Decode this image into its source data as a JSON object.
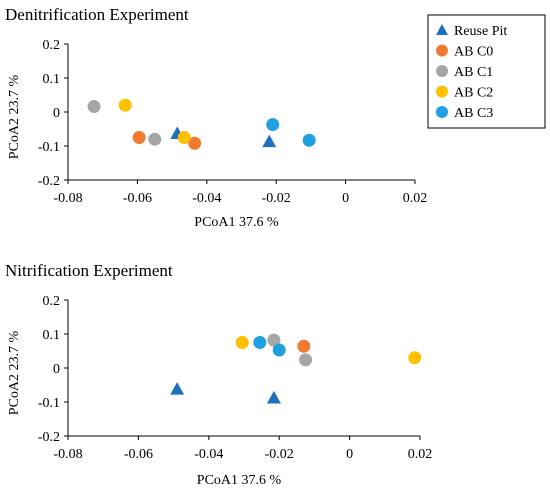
{
  "chart_data": [
    {
      "type": "scatter",
      "title": "Denitrification  Experiment",
      "xlabel": "PCoA1 37.6 %",
      "ylabel": "PCoA2 23.7 %",
      "xlim": [
        -0.08,
        0.02
      ],
      "ylim": [
        -0.2,
        0.2
      ],
      "x_ticks": [
        "-0.08",
        "-0.06",
        "-0.04",
        "-0.02",
        "0",
        "0.02"
      ],
      "y_ticks": [
        "0.2",
        "0.1",
        "0",
        "-0.1",
        "-0.2"
      ],
      "grid": false,
      "legend_position": "top-right",
      "legend": [
        {
          "name": "Reuse Pit",
          "shape": "triangle",
          "color": "#1f6fbf"
        },
        {
          "name": "AB C0",
          "shape": "circle",
          "color": "#f07a30"
        },
        {
          "name": "AB C1",
          "shape": "circle",
          "color": "#a6a6a6"
        },
        {
          "name": "AB C2",
          "shape": "circle",
          "color": "#ffc000"
        },
        {
          "name": "AB C3",
          "shape": "circle",
          "color": "#20a0e0"
        }
      ],
      "series": [
        {
          "name": "Reuse Pit",
          "x": [
            -0.0485,
            -0.022
          ],
          "y": [
            -0.063,
            -0.087
          ]
        },
        {
          "name": "AB C0",
          "x": [
            -0.0595,
            -0.0435
          ],
          "y": [
            -0.075,
            -0.092
          ]
        },
        {
          "name": "AB C1",
          "x": [
            -0.0725,
            -0.055
          ],
          "y": [
            0.016,
            -0.08
          ]
        },
        {
          "name": "AB C2",
          "x": [
            -0.0635,
            -0.0465
          ],
          "y": [
            0.02,
            -0.075
          ]
        },
        {
          "name": "AB C3",
          "x": [
            -0.021,
            -0.0105
          ],
          "y": [
            -0.037,
            -0.083
          ]
        }
      ]
    },
    {
      "type": "scatter",
      "title": "Nitrification  Experiment",
      "xlabel": "PCoA1 37.6 %",
      "ylabel": "PCoA2 23.7 %",
      "xlim": [
        -0.08,
        0.02
      ],
      "ylim": [
        -0.2,
        0.2
      ],
      "x_ticks": [
        "-0.08",
        "-0.06",
        "-0.04",
        "-0.02",
        "0",
        "0.02"
      ],
      "y_ticks": [
        "0.2",
        "0.1",
        "0",
        "-0.1",
        "-0.2"
      ],
      "grid": false,
      "legend_position": "none",
      "series": [
        {
          "name": "Reuse Pit",
          "x": [
            -0.049,
            -0.0215
          ],
          "y": [
            -0.062,
            -0.088
          ]
        },
        {
          "name": "AB C0",
          "x": [
            -0.013
          ],
          "y": [
            0.064
          ]
        },
        {
          "name": "AB C1",
          "x": [
            -0.0215,
            -0.0125
          ],
          "y": [
            0.082,
            0.024
          ]
        },
        {
          "name": "AB C2",
          "x": [
            -0.0305,
            0.0185
          ],
          "y": [
            0.075,
            0.03
          ]
        },
        {
          "name": "AB C3",
          "x": [
            -0.0255,
            -0.02
          ],
          "y": [
            0.075,
            0.053
          ]
        }
      ]
    }
  ]
}
